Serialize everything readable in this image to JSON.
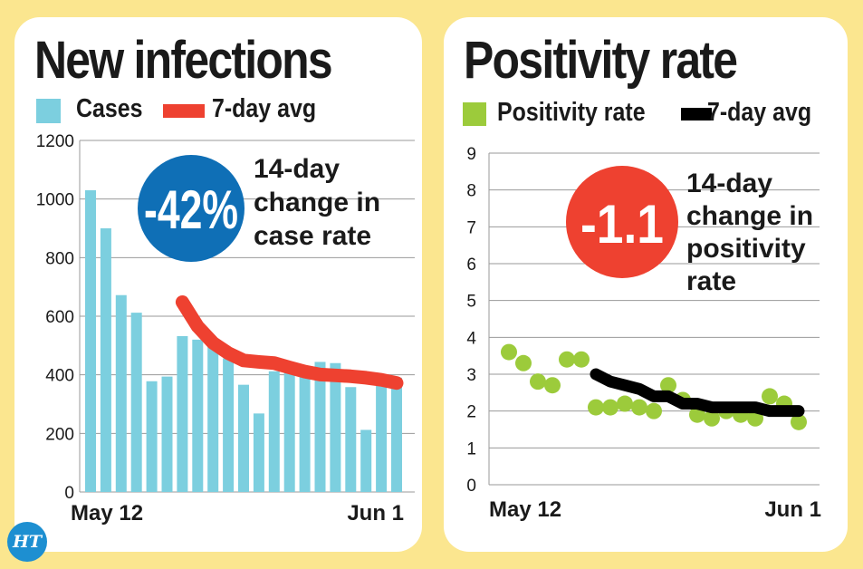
{
  "colors": {
    "background": "#fbe68f",
    "cases_bar": "#7ccfdf",
    "cases_avg": "#ee4130",
    "positivity_dot": "#9ccb3b",
    "positivity_avg": "#000000",
    "badge_left": "#0f6fb6",
    "badge_right": "#ee4130"
  },
  "logo": {
    "text": "HT"
  },
  "chart_data": [
    {
      "type": "bar",
      "title": "New infections",
      "legend": [
        "Cases",
        "7-day avg"
      ],
      "series": [
        {
          "name": "Cases",
          "type": "bar",
          "values": [
            1030,
            900,
            672,
            612,
            378,
            394,
            532,
            520,
            502,
            456,
            366,
            268,
            412,
            408,
            428,
            444,
            440,
            358,
            212,
            378,
            390
          ]
        },
        {
          "name": "7-day avg",
          "type": "line",
          "values": [
            null,
            null,
            null,
            null,
            null,
            null,
            648,
            565,
            509,
            474,
            449,
            444,
            440,
            425,
            411,
            401,
            398,
            395,
            390,
            383,
            372
          ]
        }
      ],
      "x_tick_labels": [
        "May 12",
        "Jun 1"
      ],
      "ylim": [
        0,
        1200
      ],
      "yticks": [
        0,
        200,
        400,
        600,
        800,
        1000,
        1200
      ],
      "grid": true,
      "legend_placement": "top-left",
      "annotation": {
        "badge": "-42%",
        "lines": [
          "14-day",
          "change in",
          "case rate"
        ]
      }
    },
    {
      "type": "scatter",
      "title": "Positivity rate",
      "legend": [
        "Positivity rate",
        "7-day avg"
      ],
      "series": [
        {
          "name": "Positivity rate",
          "type": "scatter",
          "values": [
            3.6,
            3.3,
            2.8,
            2.7,
            3.4,
            3.4,
            2.1,
            2.1,
            2.2,
            2.1,
            2.0,
            2.7,
            2.3,
            1.9,
            1.8,
            2.0,
            1.9,
            1.8,
            2.4,
            2.2,
            1.7
          ]
        },
        {
          "name": "7-day avg",
          "type": "line",
          "values": [
            null,
            null,
            null,
            null,
            null,
            null,
            3.0,
            2.8,
            2.7,
            2.6,
            2.4,
            2.4,
            2.2,
            2.2,
            2.1,
            2.1,
            2.1,
            2.1,
            2.0,
            2.0,
            2.0
          ]
        }
      ],
      "x_tick_labels": [
        "May 12",
        "Jun 1"
      ],
      "ylim": [
        0,
        9
      ],
      "yticks": [
        0,
        1,
        2,
        3,
        4,
        5,
        6,
        7,
        8,
        9
      ],
      "grid": true,
      "legend_placement": "top-left",
      "annotation": {
        "badge": "-1.1",
        "lines": [
          "14-day",
          "change in",
          "positivity",
          "rate"
        ]
      }
    }
  ]
}
